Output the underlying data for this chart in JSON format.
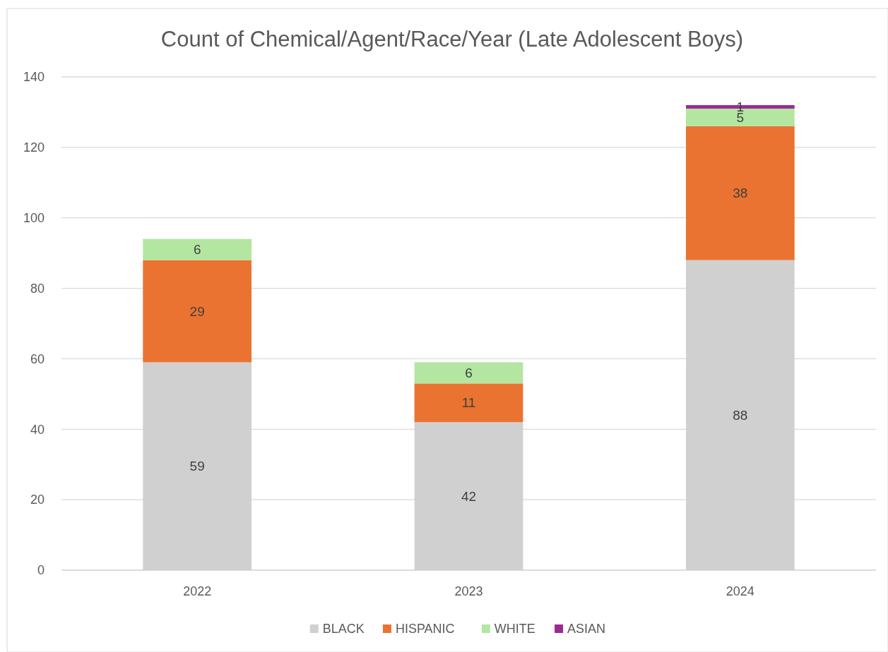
{
  "chart_data": {
    "type": "bar",
    "title": "Count of Chemical/Agent/Race/Year (Late Adolescent Boys)",
    "categories": [
      "2022",
      "2023",
      "2024"
    ],
    "stacked": true,
    "data_labels": true,
    "grid": "y",
    "legend": "bottom",
    "ylim": [
      0,
      140
    ],
    "yticks": [
      0,
      20,
      40,
      60,
      80,
      100,
      120,
      140
    ],
    "series": [
      {
        "name": "BLACK",
        "color": "#d0d0d0",
        "values": [
          59,
          42,
          88
        ]
      },
      {
        "name": "HISPANIC",
        "color": "#ea7331",
        "values": [
          29,
          11,
          38
        ]
      },
      {
        "name": "WHITE",
        "color": "#b3e6a0",
        "values": [
          6,
          6,
          5
        ]
      },
      {
        "name": "ASIAN",
        "color": "#9b2a93",
        "values": [
          null,
          null,
          1
        ]
      }
    ]
  }
}
